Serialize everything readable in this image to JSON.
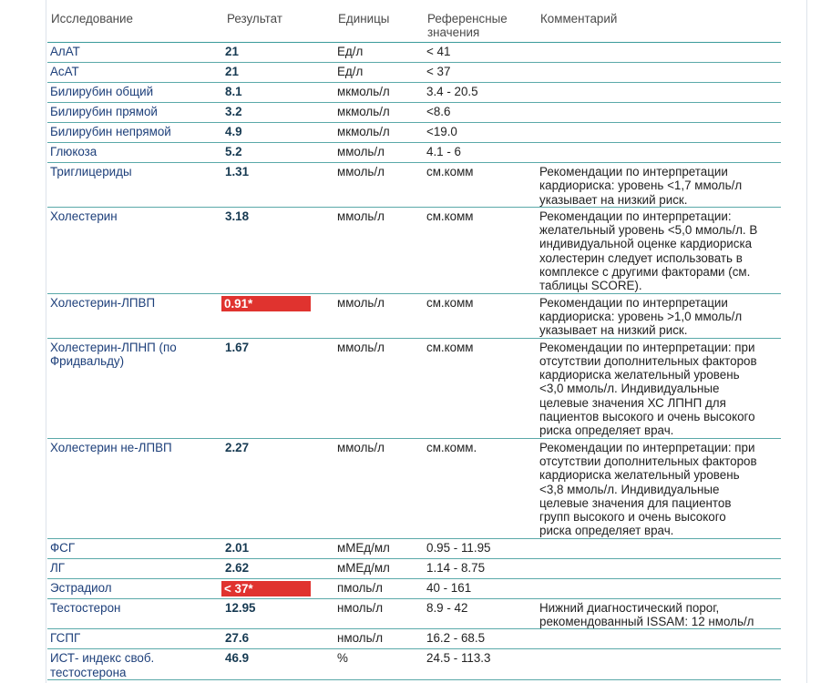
{
  "header": [
    "Исследование",
    "Результат",
    "Единицы",
    "Референсные значения",
    "Комментарий"
  ],
  "rows": [
    {
      "name": "АлАТ",
      "result": "21",
      "units": "Ед/л",
      "reference": "< 41",
      "comment": []
    },
    {
      "name": "АсАТ",
      "result": "21",
      "units": "Ед/л",
      "reference": "< 37",
      "comment": []
    },
    {
      "name": "Билирубин общий",
      "result": "8.1",
      "units": "мкмоль/л",
      "reference": "3.4 - 20.5",
      "comment": []
    },
    {
      "name": "Билирубин прямой",
      "result": "3.2",
      "units": "мкмоль/л",
      "reference": "<8.6",
      "comment": []
    },
    {
      "name": "Билирубин непрямой",
      "result": "4.9",
      "units": "мкмоль/л",
      "reference": "<19.0",
      "comment": []
    },
    {
      "name": "Глюкоза",
      "result": "5.2",
      "units": "ммоль/л",
      "reference": "4.1 - 6",
      "comment": []
    },
    {
      "name": "Триглицериды",
      "result": "1.31",
      "units": "ммоль/л",
      "reference": "см.комм",
      "comment": [
        "Рекомендации по интерпретации",
        "кардиориска: уровень <1,7 ммоль/л",
        "указывает на низкий риск."
      ]
    },
    {
      "name": "Холестерин",
      "result": "3.18",
      "units": "ммоль/л",
      "reference": "см.комм",
      "comment": [
        "Рекомендации по интерпретации:",
        "желательный уровень <5,0 ммоль/л. В",
        "индивидуальной оценке кардиориска",
        "холестерин следует использовать в",
        "комплексе с другими факторами (см.",
        "таблицы SCORE)."
      ]
    },
    {
      "name": "Холестерин-ЛПВП",
      "result": "0.91*",
      "highlight": true,
      "units": "ммоль/л",
      "reference": "см.комм",
      "comment": [
        "Рекомендации по интерпретации",
        "кардиориска: уровень >1,0 ммоль/л",
        "указывает на низкий риск."
      ]
    },
    {
      "name": "Холестерин-ЛПНП (по Фридвальду)",
      "result": "1.67",
      "units": "ммоль/л",
      "reference": "см.комм",
      "comment": [
        "Рекомендации по интерпретации: при",
        "отсутствии дополнительных факторов",
        "кардиориска желательный уровень",
        "<3,0 ммоль/л. Индивидуальные",
        "целевые значения ХС ЛПНП для",
        "пациентов высокого и очень высокого",
        "риска определяет врач."
      ]
    },
    {
      "name": "Холестерин не-ЛПВП",
      "result": "2.27",
      "units": "ммоль/л",
      "reference": "см.комм.",
      "comment": [
        "Рекомендации по интерпретации: при",
        "отсутствии дополнительных факторов",
        "кардиориска желательный уровень",
        "<3,8 ммоль/л. Индивидуальные",
        "целевые значения для пациентов",
        "групп высокого и очень высокого",
        "риска определяет врач."
      ]
    },
    {
      "name": "ФСГ",
      "result": "2.01",
      "units": "мМЕд/мл",
      "reference": "0.95 - 11.95",
      "comment": []
    },
    {
      "name": "ЛГ",
      "result": "2.62",
      "units": "мМЕд/мл",
      "reference": "1.14 - 8.75",
      "comment": []
    },
    {
      "name": "Эстрадиол",
      "result": "< 37*",
      "highlight": true,
      "units": "пмоль/л",
      "reference": "40 - 161",
      "comment": []
    },
    {
      "name": "Тестостерон",
      "result": "12.95",
      "units": "нмоль/л",
      "reference": "8.9 - 42",
      "comment": [
        "Нижний диагностический порог,",
        "рекомендованный ISSAM: 12 нмоль/л"
      ]
    },
    {
      "name": "ГСПГ",
      "result": "27.6",
      "units": "нмоль/л",
      "reference": "16.2 - 68.5",
      "comment": []
    },
    {
      "name": "ИСТ- индекс своб. тестостерона",
      "result": "46.9",
      "units": "%",
      "reference": "24.5 - 113.3",
      "comment": []
    }
  ]
}
